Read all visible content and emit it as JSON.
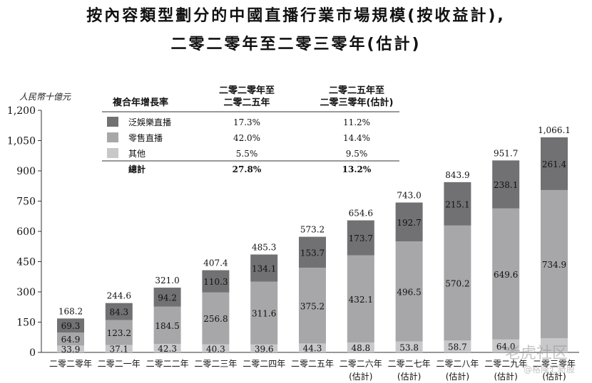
{
  "title_line1": "按內容類型劃分的中國直播行業市場規模(按收益計),",
  "title_line2": "二零二零年至二零三零年(估計)",
  "chart_data": {
    "type": "bar",
    "stacked": true,
    "ylabel": "人民幣十億元",
    "ylim": [
      0,
      1200
    ],
    "yticks": [
      0,
      150,
      300,
      450,
      600,
      750,
      900,
      1050,
      1200
    ],
    "ytick_labels": [
      "0",
      "150",
      "300",
      "450",
      "600",
      "750",
      "900",
      "1,050",
      "1,200"
    ],
    "categories": [
      {
        "line1": "二零二零年",
        "line2": ""
      },
      {
        "line1": "二零二一年",
        "line2": ""
      },
      {
        "line1": "二零二二年",
        "line2": ""
      },
      {
        "line1": "二零二三年",
        "line2": ""
      },
      {
        "line1": "二零二四年",
        "line2": ""
      },
      {
        "line1": "二零二五年",
        "line2": ""
      },
      {
        "line1": "二零二六年",
        "line2": "(估計)"
      },
      {
        "line1": "二零二七年",
        "line2": "(估計)"
      },
      {
        "line1": "二零二八年",
        "line2": "(估計)"
      },
      {
        "line1": "二零二九年",
        "line2": "(估計)"
      },
      {
        "line1": "二零三零年",
        "line2": "(估計)"
      }
    ],
    "series": [
      {
        "name": "其他",
        "color": "#c8c8ca",
        "values": [
          33.9,
          37.1,
          42.3,
          40.3,
          39.6,
          44.3,
          48.8,
          53.8,
          58.7,
          64.0,
          70.0
        ],
        "labels": [
          "33.9",
          "37.1",
          "42.3",
          "40.3",
          "39.6",
          "44.3",
          "48.8",
          "53.8",
          "58.7",
          "64.0",
          ""
        ]
      },
      {
        "name": "零售直播",
        "color": "#a7a7a9",
        "values": [
          64.9,
          123.2,
          184.5,
          256.8,
          311.6,
          375.2,
          432.1,
          496.5,
          570.2,
          649.6,
          734.9
        ],
        "labels": [
          "64.9",
          "123.2",
          "184.5",
          "256.8",
          "311.6",
          "375.2",
          "432.1",
          "496.5",
          "570.2",
          "649.6",
          "734.9"
        ]
      },
      {
        "name": "泛娛樂直播",
        "color": "#717174",
        "values": [
          69.3,
          84.3,
          94.2,
          110.3,
          134.1,
          153.7,
          173.7,
          192.7,
          215.1,
          238.1,
          261.4
        ],
        "labels": [
          "69.3",
          "84.3",
          "94.2",
          "110.3",
          "134.1",
          "153.7",
          "173.7",
          "192.7",
          "215.1",
          "238.1",
          "261.4"
        ]
      }
    ],
    "totals": [
      "168.2",
      "244.6",
      "321.0",
      "407.4",
      "485.3",
      "573.2",
      "654.6",
      "743.0",
      "843.9",
      "951.7",
      "1,066.1"
    ],
    "cagr_table": {
      "header_label": "複合年增長率",
      "col1_line1": "二零二零年至",
      "col1_line2": "二零二五年",
      "col2_line1": "二零二五年至",
      "col2_line2": "二零三零年(估計)",
      "rows": [
        {
          "name": "泛娛樂直播",
          "c1": "17.3%",
          "c2": "11.2%",
          "color": "#717174"
        },
        {
          "name": "零售直播",
          "c1": "42.0%",
          "c2": "14.4%",
          "color": "#a7a7a9"
        },
        {
          "name": "其他",
          "c1": "5.5%",
          "c2": "9.5%",
          "color": "#c8c8ca"
        }
      ],
      "total_name": "總計",
      "total_c1": "27.8%",
      "total_c2": "13.2%"
    }
  },
  "watermark1": "老虎社区",
  "watermark2": "@格隆汇新股"
}
